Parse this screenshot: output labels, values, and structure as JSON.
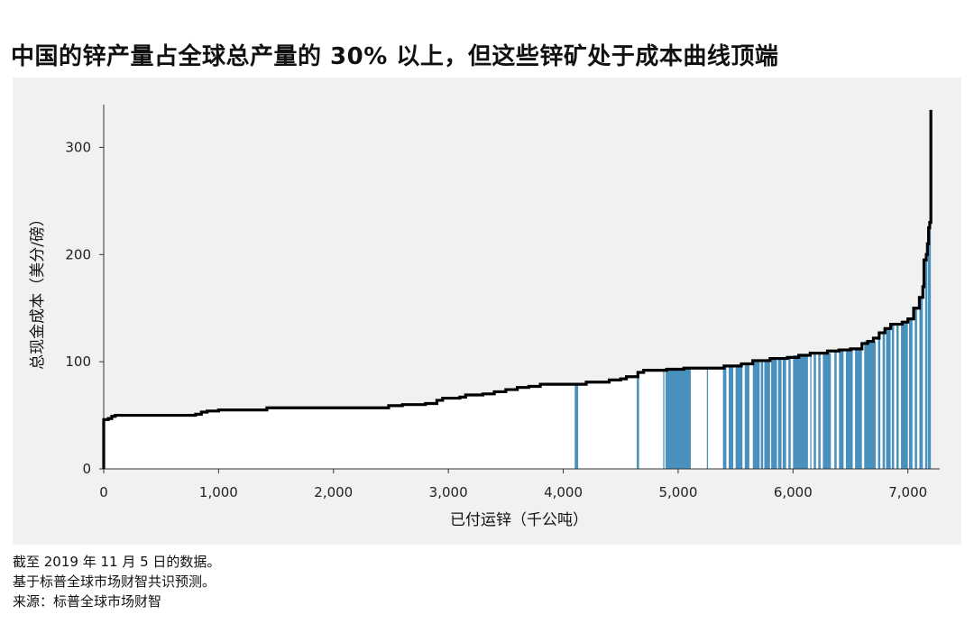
{
  "title": "中国的锌产量占全球总产量的 30% 以上，但这些锌矿处于成本曲线顶端",
  "notes": [
    "截至 2019 年 11 月 5 日的数据。",
    "基于标普全球市场财智共识预测。",
    "来源：标普全球市场财智"
  ],
  "chart_data": {
    "type": "area",
    "title": "中国的锌产量占全球总产量的 30% 以上，但这些锌矿处于成本曲线顶端",
    "xlabel": "已付运锌（千公吨）",
    "ylabel": "总现金成本（美分/磅）",
    "xlim": [
      0,
      7230
    ],
    "ylim": [
      0,
      350
    ],
    "x_ticks": [
      0,
      1000,
      2000,
      3000,
      4000,
      5000,
      6000,
      7000
    ],
    "x_tick_labels": [
      "0",
      "1,000",
      "2,000",
      "3,000",
      "4,000",
      "5,000",
      "6,000",
      "7,000"
    ],
    "y_ticks": [
      0,
      100,
      200,
      300
    ],
    "y_tick_labels": [
      "0",
      "100",
      "200",
      "300"
    ],
    "grid": false,
    "colors": {
      "curve": "#000000",
      "highlight": "#4a90bd",
      "background": "#f1f1f1",
      "fill": "#ffffff"
    },
    "cost_curve": [
      [
        0,
        46
      ],
      [
        40,
        47
      ],
      [
        70,
        49
      ],
      [
        100,
        50
      ],
      [
        400,
        50
      ],
      [
        800,
        51
      ],
      [
        850,
        53
      ],
      [
        900,
        54
      ],
      [
        1000,
        55
      ],
      [
        1400,
        55
      ],
      [
        1420,
        57
      ],
      [
        1500,
        57
      ],
      [
        2450,
        57
      ],
      [
        2480,
        59
      ],
      [
        2550,
        59
      ],
      [
        2600,
        60
      ],
      [
        2800,
        61
      ],
      [
        2900,
        64
      ],
      [
        2950,
        66
      ],
      [
        3100,
        67
      ],
      [
        3150,
        69
      ],
      [
        3300,
        70
      ],
      [
        3400,
        72
      ],
      [
        3500,
        74
      ],
      [
        3600,
        76
      ],
      [
        3700,
        77
      ],
      [
        3800,
        79
      ],
      [
        4000,
        79
      ],
      [
        4200,
        81
      ],
      [
        4400,
        83
      ],
      [
        4500,
        84
      ],
      [
        4550,
        86
      ],
      [
        4650,
        90
      ],
      [
        4700,
        92
      ],
      [
        4900,
        93
      ],
      [
        5050,
        94
      ],
      [
        5300,
        94
      ],
      [
        5400,
        96
      ],
      [
        5550,
        98
      ],
      [
        5650,
        101
      ],
      [
        5800,
        103
      ],
      [
        5950,
        104
      ],
      [
        6050,
        106
      ],
      [
        6150,
        108
      ],
      [
        6300,
        110
      ],
      [
        6400,
        111
      ],
      [
        6500,
        112
      ],
      [
        6600,
        117
      ],
      [
        6650,
        119
      ],
      [
        6700,
        122
      ],
      [
        6750,
        127
      ],
      [
        6800,
        131
      ],
      [
        6850,
        135
      ],
      [
        6950,
        137
      ],
      [
        7000,
        140
      ],
      [
        7050,
        150
      ],
      [
        7100,
        160
      ],
      [
        7130,
        170
      ],
      [
        7140,
        195
      ],
      [
        7160,
        200
      ],
      [
        7170,
        210
      ],
      [
        7180,
        225
      ],
      [
        7190,
        230
      ],
      [
        7200,
        335
      ]
    ],
    "highlighted_segments": [
      {
        "name": "China",
        "ranges": [
          [
            4100,
            4130
          ],
          [
            4640,
            4660
          ],
          [
            4870,
            4880
          ],
          [
            4890,
            5110
          ],
          [
            5250,
            5260
          ],
          [
            5390,
            5420
          ],
          [
            5440,
            5480
          ],
          [
            5500,
            5560
          ],
          [
            5580,
            5620
          ],
          [
            5650,
            5710
          ],
          [
            5720,
            5740
          ],
          [
            5750,
            5800
          ],
          [
            5810,
            5860
          ],
          [
            5870,
            5900
          ],
          [
            5910,
            5940
          ],
          [
            5960,
            5980
          ],
          [
            6000,
            6130
          ],
          [
            6150,
            6160
          ],
          [
            6180,
            6200
          ],
          [
            6220,
            6240
          ],
          [
            6260,
            6330
          ],
          [
            6360,
            6380
          ],
          [
            6400,
            6440
          ],
          [
            6460,
            6520
          ],
          [
            6540,
            6600
          ],
          [
            6620,
            6720
          ],
          [
            6740,
            6760
          ],
          [
            6780,
            6800
          ],
          [
            6810,
            6850
          ],
          [
            6860,
            6880
          ],
          [
            6900,
            6920
          ],
          [
            6940,
            7000
          ],
          [
            7010,
            7040
          ],
          [
            7060,
            7080
          ],
          [
            7100,
            7130
          ],
          [
            7150,
            7170
          ],
          [
            7175,
            7200
          ]
        ]
      }
    ]
  }
}
